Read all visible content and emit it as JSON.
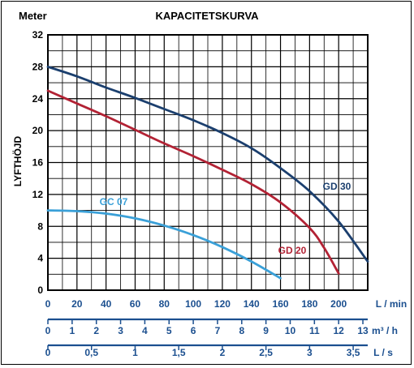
{
  "chart_data": {
    "type": "line",
    "title": "KAPACITETSKURVA",
    "unit_label": "Meter",
    "ylabel": "LYFTHÖJD",
    "ylim": [
      0,
      32
    ],
    "yticks": [
      "0",
      "4",
      "8",
      "12",
      "16",
      "20",
      "24",
      "28",
      "32"
    ],
    "xlim": [
      0,
      220
    ],
    "grid": true,
    "axes": [
      {
        "unit": "L / min",
        "ticks": [
          {
            "value": 0,
            "label": "0"
          },
          {
            "value": 20,
            "label": "20"
          },
          {
            "value": 40,
            "label": "40"
          },
          {
            "value": 60,
            "label": "60"
          },
          {
            "value": 80,
            "label": "80"
          },
          {
            "value": 100,
            "label": "100"
          },
          {
            "value": 120,
            "label": "120"
          },
          {
            "value": 140,
            "label": "140"
          },
          {
            "value": 160,
            "label": "160"
          },
          {
            "value": 180,
            "label": "180"
          },
          {
            "value": 200,
            "label": "200"
          }
        ]
      },
      {
        "unit": "m³ / h",
        "ticks": [
          {
            "value": 0,
            "label": "0"
          },
          {
            "value": 16.667,
            "label": "1"
          },
          {
            "value": 33.333,
            "label": "2"
          },
          {
            "value": 50,
            "label": "3"
          },
          {
            "value": 66.667,
            "label": "4"
          },
          {
            "value": 83.333,
            "label": "5"
          },
          {
            "value": 100,
            "label": "6"
          },
          {
            "value": 116.667,
            "label": "7"
          },
          {
            "value": 133.333,
            "label": "8"
          },
          {
            "value": 150,
            "label": "9"
          },
          {
            "value": 166.667,
            "label": "10"
          },
          {
            "value": 183.333,
            "label": "11"
          },
          {
            "value": 200,
            "label": "12"
          },
          {
            "value": 216.667,
            "label": "13"
          }
        ]
      },
      {
        "unit": "L / s",
        "ticks": [
          {
            "value": 0,
            "label": "0"
          },
          {
            "value": 30,
            "label": "0,5"
          },
          {
            "value": 60,
            "label": "1"
          },
          {
            "value": 90,
            "label": "1,5"
          },
          {
            "value": 120,
            "label": "2"
          },
          {
            "value": 150,
            "label": "2,5"
          },
          {
            "value": 180,
            "label": "3"
          },
          {
            "value": 210,
            "label": "3,5"
          }
        ]
      }
    ],
    "series": [
      {
        "name": "GD 30",
        "color": "#1b3f6e",
        "x": [
          0,
          20,
          40,
          60,
          80,
          100,
          120,
          140,
          160,
          180,
          200,
          220
        ],
        "y": [
          28,
          26.8,
          25.4,
          24.1,
          22.7,
          21.3,
          19.7,
          17.8,
          15.3,
          12.4,
          8.6,
          3.6
        ]
      },
      {
        "name": "GD 20",
        "color": "#b22234",
        "x": [
          0,
          20,
          40,
          60,
          80,
          100,
          120,
          140,
          160,
          180,
          190,
          200
        ],
        "y": [
          25,
          23.4,
          21.8,
          20.1,
          18.4,
          16.8,
          15.1,
          13.3,
          11.0,
          7.8,
          5.3,
          2.1
        ]
      },
      {
        "name": "GC 07",
        "color": "#3aa0d8",
        "x": [
          0,
          20,
          40,
          60,
          80,
          100,
          120,
          140,
          160
        ],
        "y": [
          10,
          9.9,
          9.6,
          9.0,
          8.1,
          6.9,
          5.4,
          3.6,
          1.5
        ]
      }
    ]
  }
}
